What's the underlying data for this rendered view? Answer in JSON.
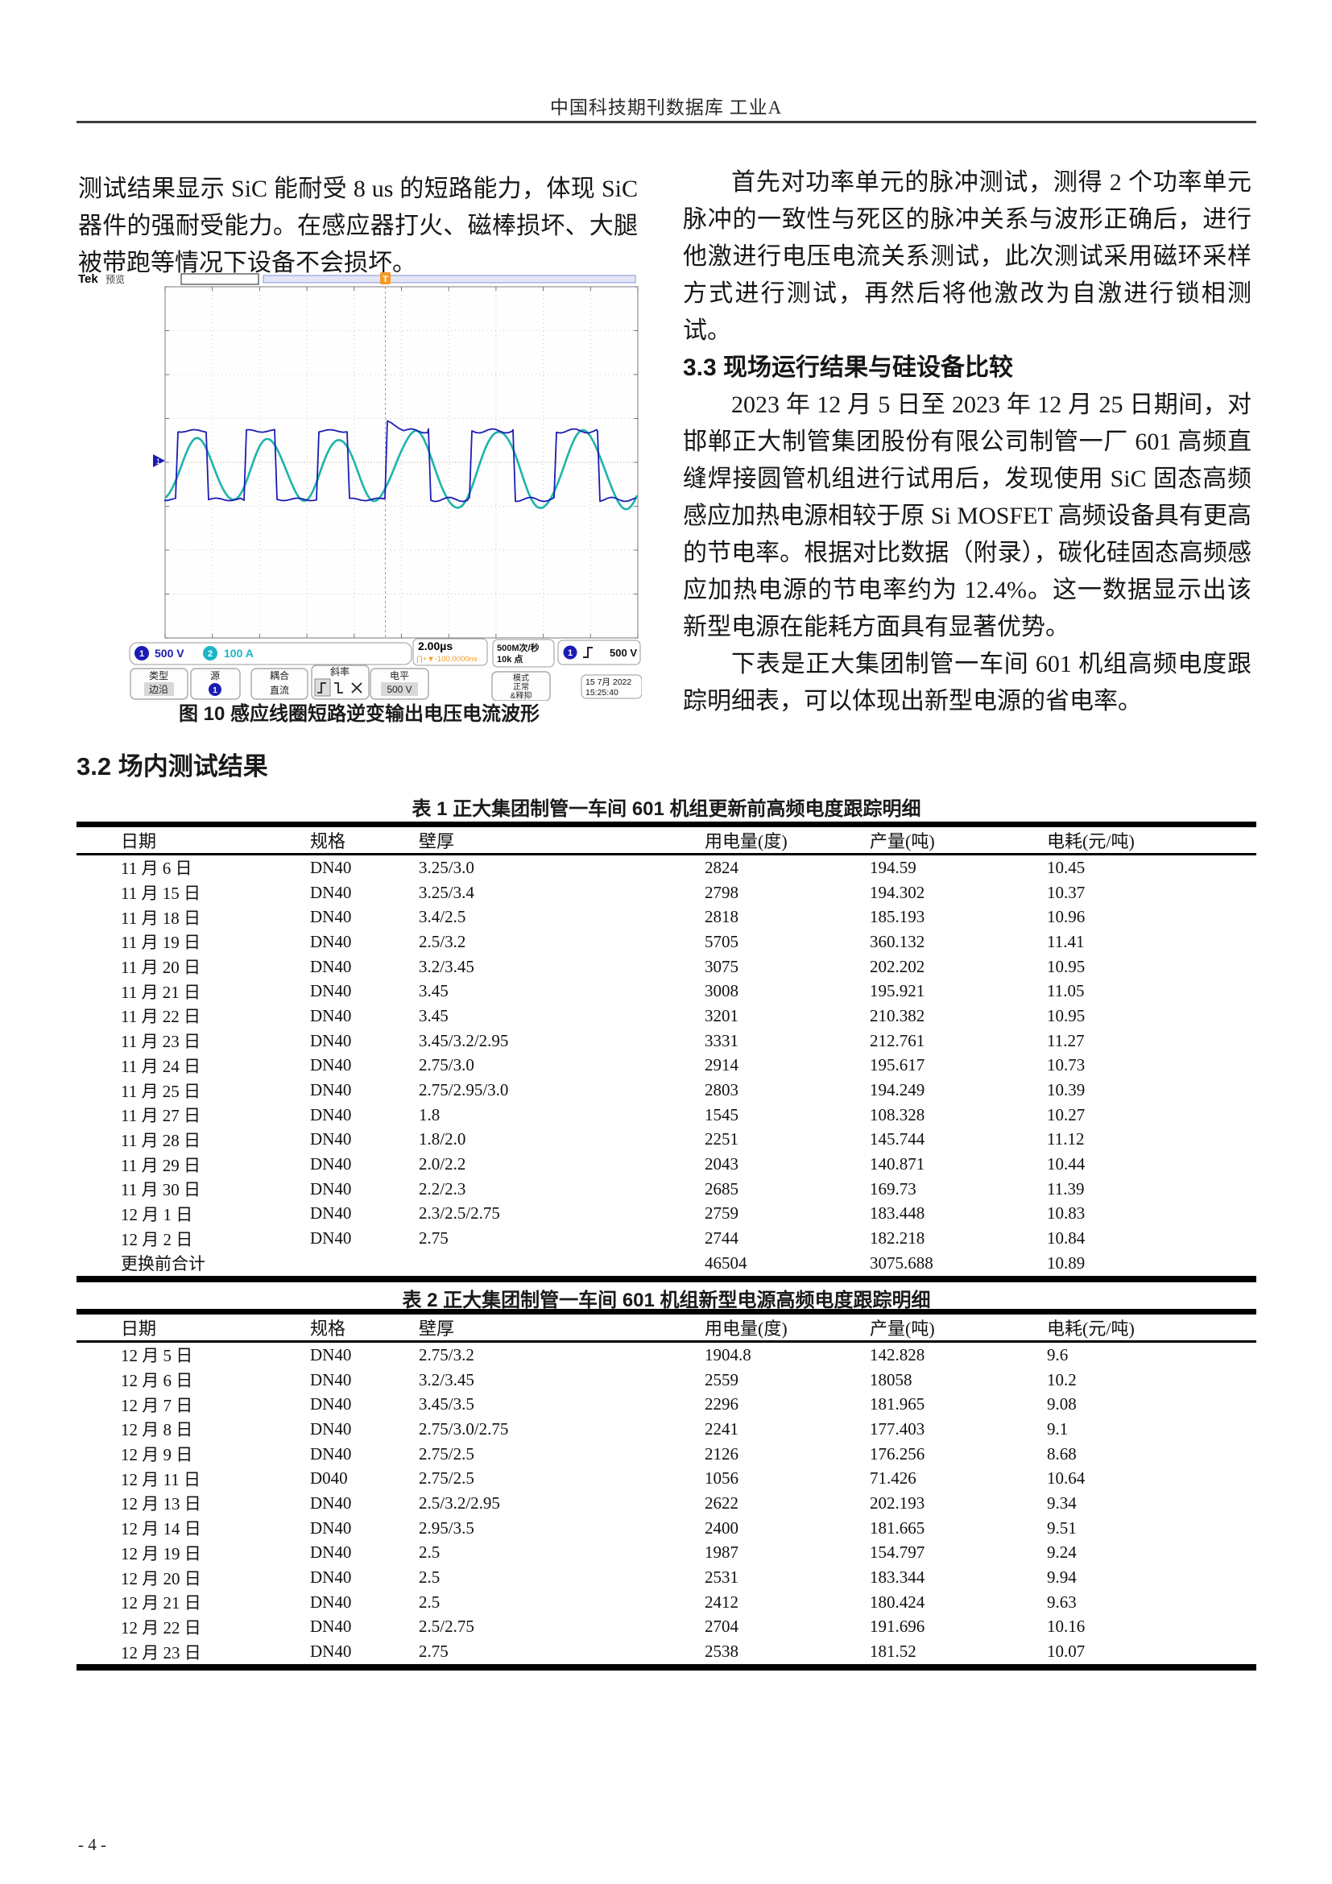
{
  "page": {
    "header": "中国科技期刊数据库 工业A",
    "footer": "- 4 -"
  },
  "left_column": {
    "para": "测试结果显示 SiC 能耐受 8 us 的短路能力，体现 SiC 器件的强耐受能力。在感应器打火、磁棒损坏、大腿被带跑等情况下设备不会损坏。"
  },
  "right_column": {
    "para1": "首先对功率单元的脉冲测试，测得 2 个功率单元脉冲的一致性与死区的脉冲关系与波形正确后，进行他激进行电压电流关系测试，此次测试采用磁环采样方式进行测试，再然后将他激改为自激进行锁相测试。",
    "heading": "3.3 现场运行结果与硅设备比较",
    "para2": "2023 年 12 月 5 日至 2023 年 12 月 25 日期间，对邯郸正大制管集团股份有限公司制管一厂 601 高频直缝焊接圆管机组进行试用后，发现使用 SiC 固态高频感应加热电源相较于原 Si MOSFET 高频设备具有更高的节电率。根据对比数据（附录），碳化硅固态高频感应加热电源的节电率约为 12.4%。这一数据显示出该新型电源在能耗方面具有显著优势。",
    "para3": "下表是正大集团制管一车间 601 机组高频电度跟踪明细表，可以体现出新型电源的省电率。"
  },
  "figure": {
    "caption": "图 10  感应线圈短路逆变输出电压电流波形",
    "scope": {
      "brand": "Tek",
      "mode": "预览",
      "ch1_num": "1",
      "ch2_num": "2",
      "ch1_scale": "500 V",
      "ch2_scale": "100 A",
      "timebase": "2.00µs",
      "trig_readout": "∏+▼-100.0000ns",
      "sample_rate": "500M次/秒",
      "record": "10k 点",
      "trig_ch": "1",
      "trig_level": "500 V",
      "trig_marker": "T",
      "btn_type": "类型",
      "btn_type_val": "边沿",
      "btn_src": "源",
      "btn_coupling": "耦合",
      "btn_coupling_val": "直流",
      "btn_slope": "斜率",
      "btn_level": "电平",
      "btn_level_val": "500 V",
      "btn_mode": "模式",
      "btn_mode_val": "正常",
      "btn_mode_val2": "&释抑",
      "date": "15 7月 2022",
      "time": "15:25:40",
      "colors": {
        "ch1": "#1c1cb4",
        "ch2": "#1db4aa",
        "trigger": "#f59a23"
      }
    }
  },
  "section_heading": "3.2 场内测试结果",
  "tables": [
    {
      "title": "表 1  正大集团制管一车间 601 机组更新前高频电度跟踪明细",
      "columns": [
        "日期",
        "规格",
        "壁厚",
        "用电量(度)",
        "产量(吨)",
        "电耗(元/吨)"
      ],
      "rows": [
        [
          "11 月 6 日",
          "DN40",
          "3.25/3.0",
          "2824",
          "194.59",
          "10.45"
        ],
        [
          "11 月 15 日",
          "DN40",
          "3.25/3.4",
          "2798",
          "194.302",
          "10.37"
        ],
        [
          "11 月 18 日",
          "DN40",
          "3.4/2.5",
          "2818",
          "185.193",
          "10.96"
        ],
        [
          "11 月 19 日",
          "DN40",
          "2.5/3.2",
          "5705",
          "360.132",
          "11.41"
        ],
        [
          "11 月 20 日",
          "DN40",
          "3.2/3.45",
          "3075",
          "202.202",
          "10.95"
        ],
        [
          "11 月 21 日",
          "DN40",
          "3.45",
          "3008",
          "195.921",
          "11.05"
        ],
        [
          "11 月 22 日",
          "DN40",
          "3.45",
          "3201",
          "210.382",
          "10.95"
        ],
        [
          "11 月 23 日",
          "DN40",
          "3.45/3.2/2.95",
          "3331",
          "212.761",
          "11.27"
        ],
        [
          "11 月 24 日",
          "DN40",
          "2.75/3.0",
          "2914",
          "195.617",
          "10.73"
        ],
        [
          "11 月 25 日",
          "DN40",
          "2.75/2.95/3.0",
          "2803",
          "194.249",
          "10.39"
        ],
        [
          "11 月 27 日",
          "DN40",
          "1.8",
          "1545",
          "108.328",
          "10.27"
        ],
        [
          "11 月 28 日",
          "DN40",
          "1.8/2.0",
          "2251",
          "145.744",
          "11.12"
        ],
        [
          "11 月 29 日",
          "DN40",
          "2.0/2.2",
          "2043",
          "140.871",
          "10.44"
        ],
        [
          "11 月 30 日",
          "DN40",
          "2.2/2.3",
          "2685",
          "169.73",
          "11.39"
        ],
        [
          "12 月 1 日",
          "DN40",
          "2.3/2.5/2.75",
          "2759",
          "183.448",
          "10.83"
        ],
        [
          "12 月 2 日",
          "DN40",
          "2.75",
          "2744",
          "182.218",
          "10.84"
        ],
        [
          "更换前合计",
          "",
          "",
          "46504",
          "3075.688",
          "10.89"
        ]
      ]
    },
    {
      "title": "表 2  正大集团制管一车间 601 机组新型电源高频电度跟踪明细",
      "columns": [
        "日期",
        "规格",
        "壁厚",
        "用电量(度)",
        "产量(吨)",
        "电耗(元/吨)"
      ],
      "rows": [
        [
          "12 月 5 日",
          "DN40",
          "2.75/3.2",
          "1904.8",
          "142.828",
          "9.6"
        ],
        [
          "12 月 6 日",
          "DN40",
          "3.2/3.45",
          "2559",
          "18058",
          "10.2"
        ],
        [
          "12 月 7 日",
          "DN40",
          "3.45/3.5",
          "2296",
          "181.965",
          "9.08"
        ],
        [
          "12 月 8 日",
          "DN40",
          "2.75/3.0/2.75",
          "2241",
          "177.403",
          "9.1"
        ],
        [
          "12 月 9 日",
          "DN40",
          "2.75/2.5",
          "2126",
          "176.256",
          "8.68"
        ],
        [
          "12 月 11 日",
          "D040",
          "2.75/2.5",
          "1056",
          "71.426",
          "10.64"
        ],
        [
          "12 月 13 日",
          "DN40",
          "2.5/3.2/2.95",
          "2622",
          "202.193",
          "9.34"
        ],
        [
          "12 月 14 日",
          "DN40",
          "2.95/3.5",
          "2400",
          "181.665",
          "9.51"
        ],
        [
          "12 月 19 日",
          "DN40",
          "2.5",
          "1987",
          "154.797",
          "9.24"
        ],
        [
          "12 月 20 日",
          "DN40",
          "2.5",
          "2531",
          "183.344",
          "9.94"
        ],
        [
          "12 月 21 日",
          "DN40",
          "2.5",
          "2412",
          "180.424",
          "9.63"
        ],
        [
          "12 月 22 日",
          "DN40",
          "2.5/2.75",
          "2704",
          "191.696",
          "10.16"
        ],
        [
          "12 月 23 日",
          "DN40",
          "2.75",
          "2538",
          "181.52",
          "10.07"
        ]
      ]
    }
  ]
}
